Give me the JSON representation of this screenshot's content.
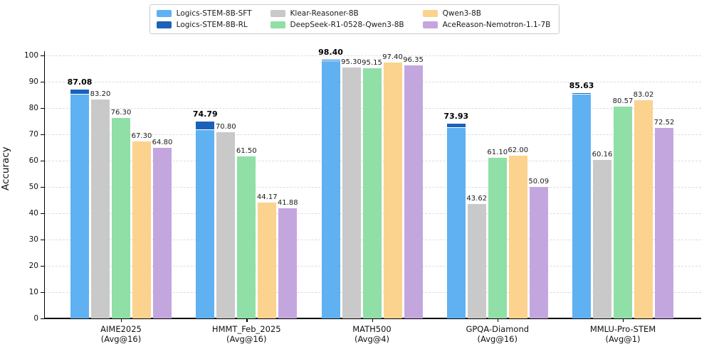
{
  "legend": {
    "columns": [
      [
        {
          "label": "Logics-STEM-8B-SFT",
          "color": "#5FB1F2"
        },
        {
          "label": "Logics-STEM-8B-RL",
          "color": "#1A62B8"
        }
      ],
      [
        {
          "label": "Klear-Reasoner-8B",
          "color": "#C9C9C9"
        },
        {
          "label": "DeepSeek-R1-0528-Qwen3-8B",
          "color": "#8FDFA6"
        }
      ],
      [
        {
          "label": "Qwen3-8B",
          "color": "#FBD28E"
        },
        {
          "label": "AceReason-Nemotron-1.1-7B",
          "color": "#C4A6DF"
        }
      ]
    ]
  },
  "chart_data": {
    "type": "bar",
    "title": "",
    "xlabel": "",
    "ylabel": "Accuracy",
    "ylim": [
      0,
      101.6
    ],
    "yticks": [
      0,
      10,
      20,
      30,
      40,
      50,
      60,
      70,
      80,
      90,
      100
    ],
    "grid": "horizontal dashed",
    "legend_position": "top-center outside",
    "categories": [
      "AIME2025 (Avg@16)",
      "HMMT_Feb_2025 (Avg@16)",
      "MATH500 (Avg@4)",
      "GPQA-Diamond (Avg@16)",
      "MMLU-Pro-STEM (Avg@1)"
    ],
    "category_lines": [
      [
        "AIME2025",
        "(Avg@16)"
      ],
      [
        "HMMT_Feb_2025",
        "(Avg@16)"
      ],
      [
        "MATH500",
        "(Avg@4)"
      ],
      [
        "GPQA-Diamond",
        "(Avg@16)"
      ],
      [
        "MMLU-Pro-STEM",
        "(Avg@1)"
      ]
    ],
    "series": [
      {
        "name": "Logics-STEM-8B-SFT",
        "color": "#5FB1F2",
        "role": "stacked-base (unlabeled, height read from pixels)",
        "values": [
          85.1,
          71.6,
          97.9,
          72.4,
          85.3
        ],
        "estimated": true
      },
      {
        "name": "Logics-STEM-8B-RL",
        "color": "#1A62B8",
        "role": "stacked-cap (bar total, bold label)",
        "values": [
          87.08,
          74.79,
          98.4,
          73.93,
          85.63
        ],
        "labels": [
          "87.08",
          "74.79",
          "98.40",
          "73.93",
          "85.63"
        ],
        "label_style": "bold"
      },
      {
        "name": "Klear-Reasoner-8B",
        "color": "#C9C9C9",
        "values": [
          83.2,
          70.8,
          95.3,
          43.62,
          60.16
        ],
        "labels": [
          "83.20",
          "70.80",
          "95.30",
          "43.62",
          "60.16"
        ]
      },
      {
        "name": "DeepSeek-R1-0528-Qwen3-8B",
        "color": "#8FDFA6",
        "values": [
          76.3,
          61.5,
          95.15,
          61.1,
          80.57
        ],
        "labels": [
          "76.30",
          "61.50",
          "95.15",
          "61.10",
          "80.57"
        ]
      },
      {
        "name": "Qwen3-8B",
        "color": "#FBD28E",
        "values": [
          67.3,
          44.17,
          97.4,
          62.0,
          83.02
        ],
        "labels": [
          "67.30",
          "44.17",
          "97.40",
          "62.00",
          "83.02"
        ]
      },
      {
        "name": "AceReason-Nemotron-1.1-7B",
        "color": "#C4A6DF",
        "values": [
          64.8,
          41.88,
          96.35,
          50.09,
          72.52
        ],
        "labels": [
          "64.80",
          "41.88",
          "96.35",
          "50.09",
          "72.52"
        ]
      }
    ]
  },
  "layout_colors": {
    "background": "#ffffff",
    "grid": "#dcdcdc",
    "spine": "#000000",
    "legend_border": "#cccccc",
    "label_text": "#1a1a1a"
  }
}
